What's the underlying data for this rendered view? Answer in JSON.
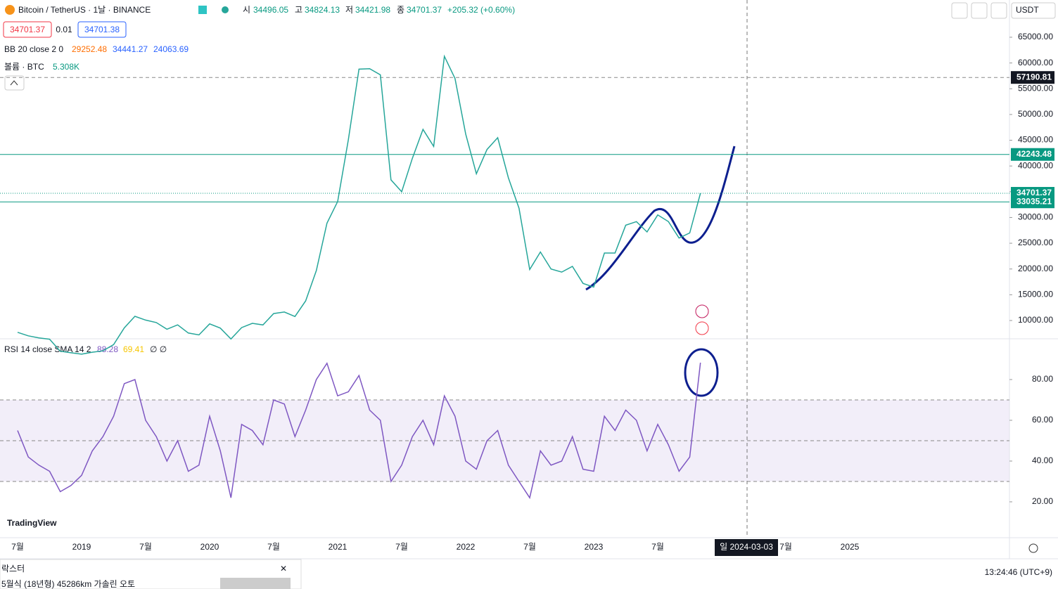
{
  "header": {
    "symbol": "Bitcoin / TetherUS · 1날 · BINANCE",
    "open_label": "시",
    "open": "34496.05",
    "high_label": "고",
    "high": "34824.13",
    "low_label": "저",
    "low": "34421.98",
    "close_label": "종",
    "close": "34701.37",
    "change": "+205.32 (+0.60%)",
    "sell": "34701.37",
    "spread": "0.01",
    "buy": "34701.38",
    "currency": "USDT"
  },
  "bb": {
    "label": "BB 20 close 2 0",
    "basis": "29252.48",
    "upper": "34441.27",
    "lower": "24063.69"
  },
  "volume": {
    "label": "볼륨 · BTC",
    "value": "5.308K"
  },
  "rsi_legend": {
    "label": "RSI 14 close SMA 14 2",
    "rsi": "88.28",
    "ma": "69.41",
    "extra": "∅ ∅"
  },
  "brand": "TradingView",
  "clock": "13:24:46 (UTC+9)",
  "ad": {
    "title": "락스터",
    "text": "5월식 (18년형) 45286km 가솔린 오토"
  },
  "crosshair_date": "일 2024-03-03",
  "chart_data": [
    {
      "type": "line",
      "name": "price",
      "values": [
        7700,
        7030,
        6630,
        6370,
        4040,
        3740,
        3460,
        3850,
        4100,
        5320,
        8570,
        10820,
        10080,
        9600,
        8300,
        9150,
        7570,
        7200,
        9350,
        8520,
        6410,
        8620,
        9450,
        9140,
        11350,
        11650,
        10780,
        13800,
        19700,
        28900,
        33100,
        45100,
        58800,
        58900,
        57700,
        37300,
        35000,
        41500,
        47100,
        43800,
        61300,
        57000,
        46200,
        38500,
        43200,
        45500,
        37700,
        31800,
        19900,
        23300,
        20000,
        19400,
        20500,
        17200,
        16500,
        23100,
        23100,
        28500,
        29200,
        27200,
        30500,
        29200,
        26000,
        27000,
        34701.37
      ],
      "color": "#26a69a",
      "ylim": [
        6450,
        72230
      ],
      "yticks": [
        {
          "value": 10000,
          "label": "10000.00"
        },
        {
          "value": 15000,
          "label": "15000.00"
        },
        {
          "value": 20000,
          "label": "20000.00"
        },
        {
          "value": 25000,
          "label": "25000.00"
        },
        {
          "value": 30000,
          "label": "30000.00"
        },
        {
          "value": 35000,
          "label": "35000.00"
        },
        {
          "value": 40000,
          "label": "40000.00"
        },
        {
          "value": 45000,
          "label": "45000.00"
        },
        {
          "value": 50000,
          "label": "50000.00"
        },
        {
          "value": 55000,
          "label": "55000.00"
        },
        {
          "value": 60000,
          "label": "60000.00"
        },
        {
          "value": 65000,
          "label": "65000.00"
        }
      ],
      "levels": [
        {
          "value": 57190.81,
          "color": "#888888",
          "style": "dashed"
        },
        {
          "value": 42243.48,
          "color": "#089981",
          "style": "solid"
        },
        {
          "value": 34701.37,
          "color": "#089981",
          "style": "dotted"
        },
        {
          "value": 33035.21,
          "color": "#089981",
          "style": "solid"
        }
      ]
    },
    {
      "type": "line",
      "name": "rsi",
      "values": [
        55,
        42,
        38,
        35,
        25,
        28,
        33,
        45,
        52,
        62,
        78,
        80,
        60,
        52,
        40,
        50,
        35,
        38,
        62,
        45,
        22,
        58,
        55,
        48,
        70,
        68,
        52,
        65,
        80,
        88,
        72,
        74,
        82,
        65,
        60,
        30,
        38,
        52,
        60,
        48,
        72,
        62,
        40,
        36,
        50,
        55,
        38,
        30,
        22,
        45,
        38,
        40,
        52,
        36,
        35,
        62,
        55,
        65,
        60,
        45,
        58,
        48,
        35,
        42,
        88.28
      ],
      "color": "#7e57c2",
      "ylim": [
        2.4,
        100
      ],
      "yticks": [
        {
          "value": 20,
          "label": "20.00"
        },
        {
          "value": 40,
          "label": "40.00"
        },
        {
          "value": 60,
          "label": "60.00"
        },
        {
          "value": 80,
          "label": "80.00"
        }
      ],
      "bands": [
        70,
        50,
        30
      ]
    }
  ],
  "time_axis": [
    "7월",
    "2019",
    "7월",
    "2020",
    "7월",
    "2021",
    "7월",
    "2022",
    "7월",
    "2023",
    "7월",
    null,
    "7월",
    "2025"
  ]
}
